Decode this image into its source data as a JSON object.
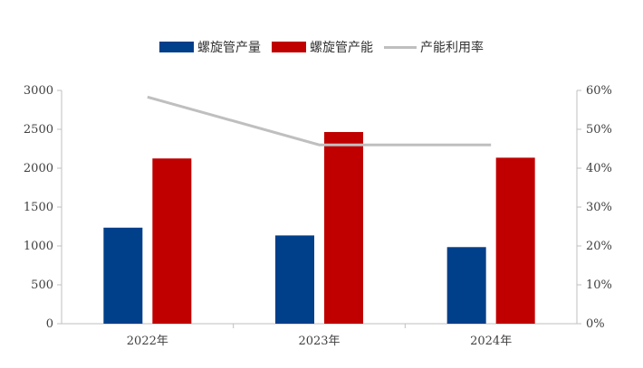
{
  "chart_data": {
    "type": "bar",
    "categories": [
      "2022年",
      "2023年",
      "2024年"
    ],
    "series": [
      {
        "name": "螺旋管产量",
        "type": "bar",
        "axis": "left",
        "color": "#003f8a",
        "values": [
          1235,
          1135,
          985
        ]
      },
      {
        "name": "螺旋管产能",
        "type": "bar",
        "axis": "left",
        "color": "#c00000",
        "values": [
          2125,
          2465,
          2135
        ]
      },
      {
        "name": "产能利用率",
        "type": "line",
        "axis": "right",
        "color": "#bfbfbf",
        "values": [
          58.3,
          46.0,
          46.0
        ]
      }
    ],
    "y_left": {
      "ylim": [
        0,
        3000
      ],
      "ticks": [
        "0",
        "500",
        "1000",
        "1500",
        "2000",
        "2500",
        "3000"
      ]
    },
    "y_right": {
      "ylim": [
        0,
        60
      ],
      "ticks": [
        "0%",
        "10%",
        "20%",
        "30%",
        "40%",
        "50%",
        "60%"
      ]
    },
    "legend_position": "top",
    "grid": false
  }
}
